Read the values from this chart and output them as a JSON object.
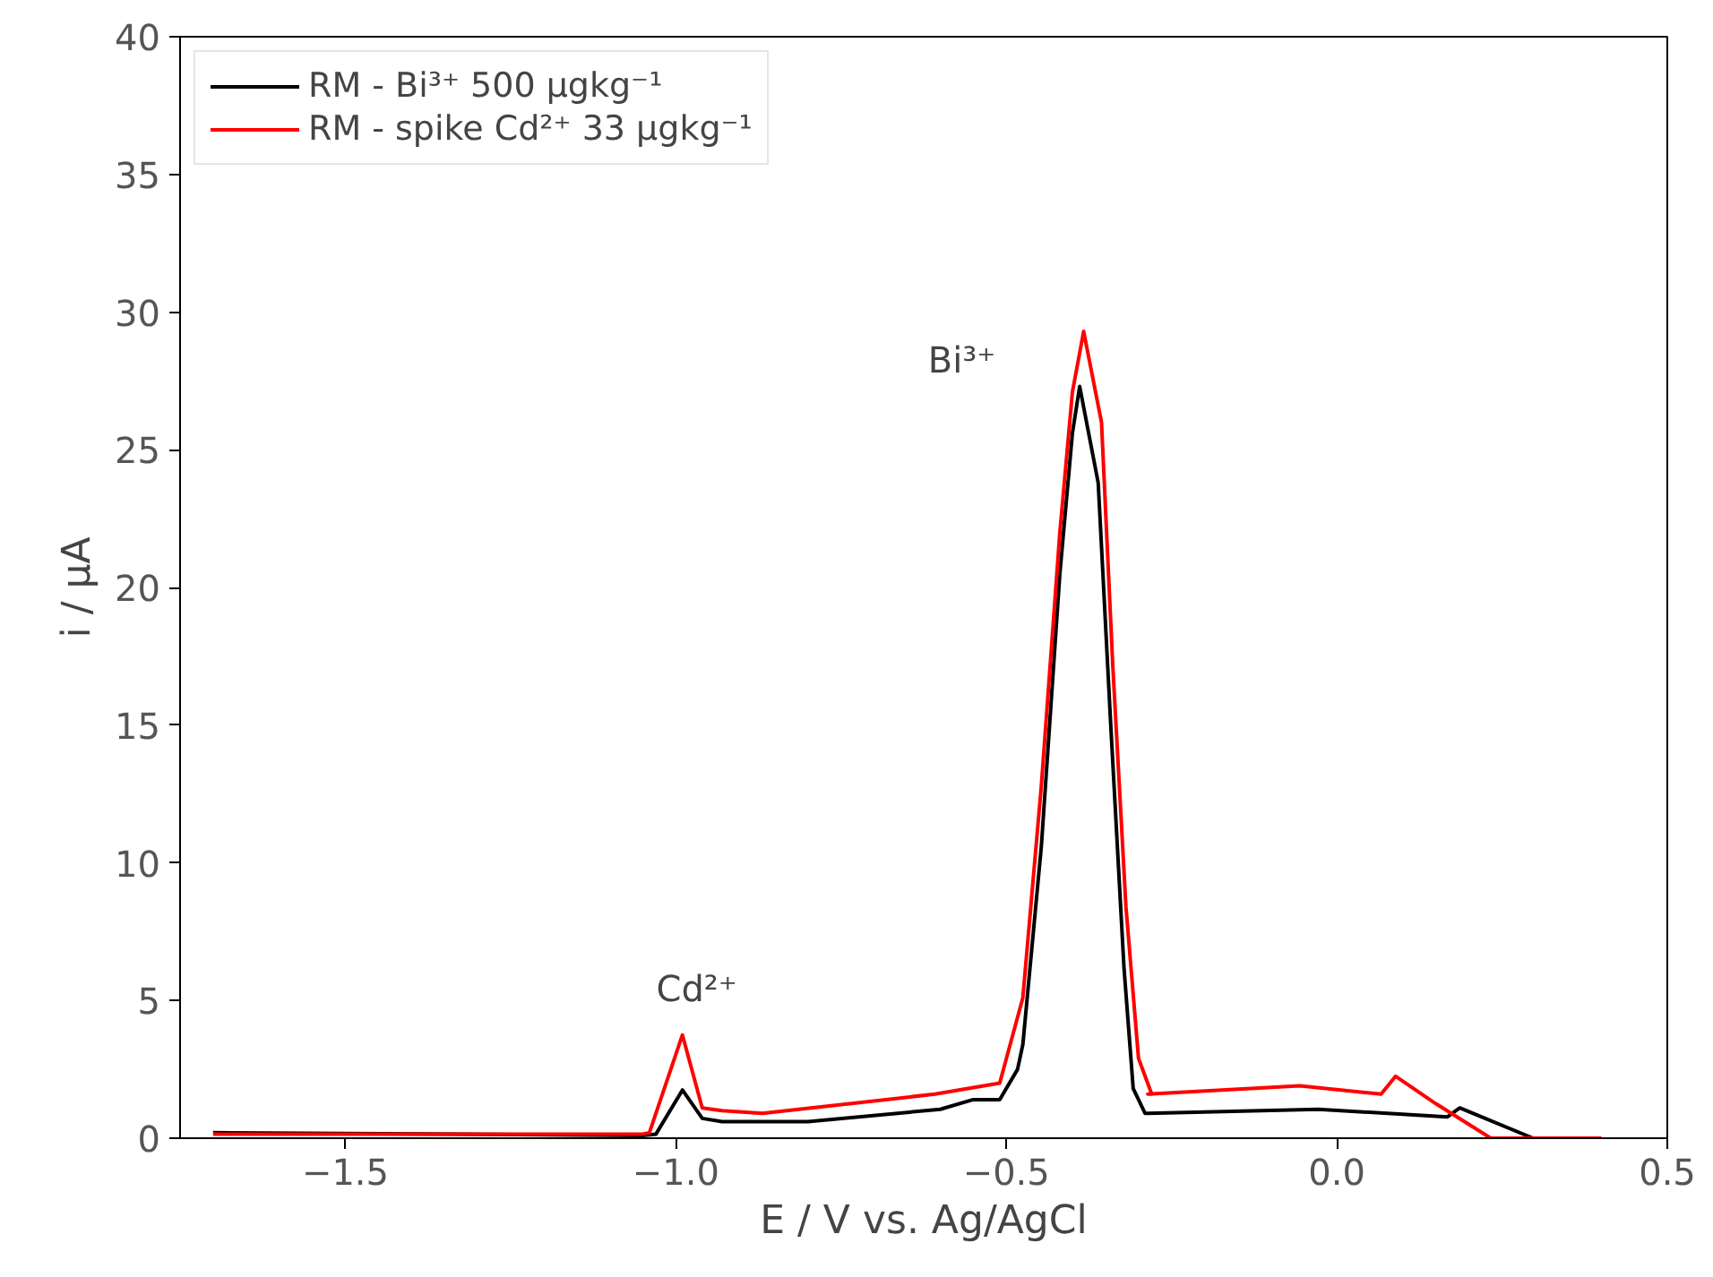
{
  "chart_data": {
    "type": "line",
    "xlabel": "E / V vs. Ag/AgCl",
    "ylabel": "i / μA",
    "xlim": [
      -1.75,
      0.5
    ],
    "ylim": [
      0,
      40
    ],
    "xticks": [
      {
        "value": -1.5,
        "label": "−1.5"
      },
      {
        "value": -1.0,
        "label": "−1.0"
      },
      {
        "value": -0.5,
        "label": "−0.5"
      },
      {
        "value": 0.0,
        "label": "0.0"
      },
      {
        "value": 0.5,
        "label": "0.5"
      }
    ],
    "yticks": [
      0,
      5,
      10,
      15,
      20,
      25,
      30,
      35,
      40
    ],
    "grid": false,
    "legend": "top left",
    "marker": "none",
    "line_style": "solid",
    "series": [
      {
        "name": "RM - Bi³⁺ 500 μgkg⁻¹",
        "color": "#000000",
        "x": [
          -1.7,
          -1.05,
          -1.03,
          -0.99,
          -0.96,
          -0.93,
          -0.8,
          -0.6,
          -0.55,
          -0.51,
          -0.483,
          -0.475,
          -0.447,
          -0.419,
          -0.4,
          -0.389,
          -0.361,
          -0.342,
          -0.322,
          -0.308,
          -0.29,
          -0.286,
          -0.028,
          0.167,
          0.186,
          0.297,
          0.4
        ],
        "values": [
          0.2,
          0.1,
          0.15,
          1.75,
          0.72,
          0.6,
          0.6,
          1.05,
          1.4,
          1.4,
          2.5,
          3.4,
          10.6,
          20.5,
          25.6,
          27.3,
          23.8,
          15.0,
          6.2,
          1.8,
          0.9,
          0.9,
          1.05,
          0.77,
          1.1,
          0,
          0
        ]
      },
      {
        "name": "RM - spike Cd²⁺ 33 μgkg⁻¹",
        "color": "#ff0000",
        "x": [
          -1.7,
          -1.05,
          -1.04,
          -0.99,
          -0.96,
          -0.93,
          -0.869,
          -0.608,
          -0.51,
          -0.475,
          -0.447,
          -0.419,
          -0.4,
          -0.383,
          -0.356,
          -0.339,
          -0.319,
          -0.3,
          -0.28,
          -0.286,
          -0.056,
          0.067,
          0.089,
          0.15,
          0.233,
          0.4
        ],
        "values": [
          0.15,
          0.15,
          0.2,
          3.75,
          1.1,
          1.0,
          0.9,
          1.6,
          2.0,
          5.1,
          12.8,
          22.0,
          27.1,
          29.3,
          26.0,
          17.2,
          8.4,
          2.9,
          1.6,
          1.6,
          1.9,
          1.6,
          2.25,
          1.25,
          0,
          0
        ]
      }
    ],
    "annotations": [
      {
        "text": "Cd²⁺",
        "x": -0.99,
        "y": 3.75
      },
      {
        "text": "Bi³⁺",
        "x": -0.383,
        "y": 29.3
      }
    ]
  }
}
